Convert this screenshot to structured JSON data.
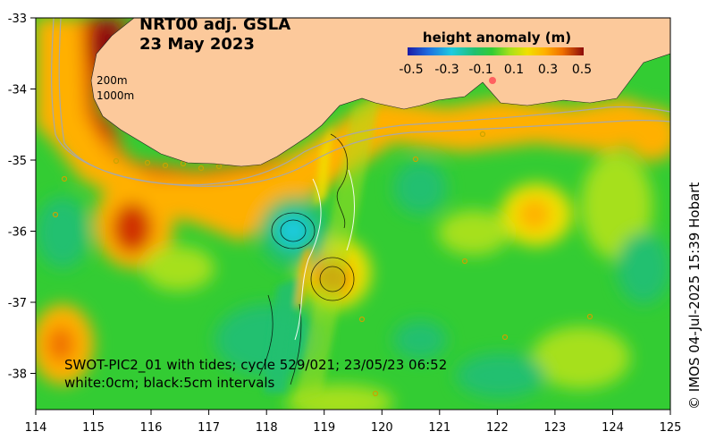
{
  "title": {
    "line1": "NRT00 adj. GSLA",
    "line2": "23 May 2023"
  },
  "colorbar": {
    "title": "height anomaly (m)",
    "ticks": [
      "-0.5",
      "-0.3",
      "-0.1",
      "0.1",
      "0.3",
      "0.5"
    ],
    "colors": [
      "#1a1aa6",
      "#1e6fe0",
      "#1ecbe0",
      "#20c070",
      "#33cc33",
      "#a6e01a",
      "#f0e000",
      "#ffb000",
      "#f07000",
      "#d03000",
      "#8b0a0a"
    ]
  },
  "isobaths": [
    "200m",
    "1000m"
  ],
  "caption": {
    "line1": "SWOT-PIC2_01 with tides; cycle 529/021; 23/05/23 06:52",
    "line2": "white:0cm; black:5cm intervals"
  },
  "credit": "© IMOS 04-Jul-2025 15:39 Hobart",
  "axes": {
    "x_ticks": [
      "114",
      "115",
      "116",
      "117",
      "118",
      "119",
      "120",
      "121",
      "122",
      "123",
      "124",
      "125"
    ],
    "y_ticks": [
      "-33",
      "-34",
      "-35",
      "-36",
      "-37",
      "-38"
    ]
  },
  "colors": {
    "land": "#fcc99b",
    "ocean_base": "#33cc33"
  }
}
